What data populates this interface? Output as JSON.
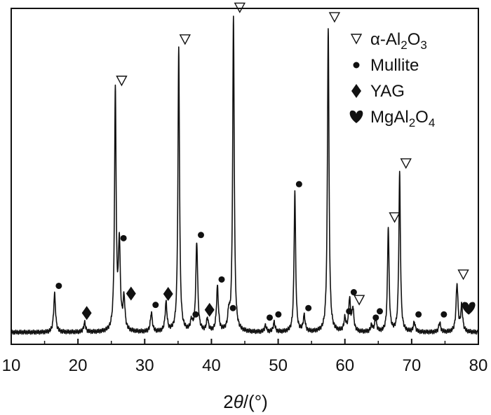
{
  "chart_data": {
    "type": "line",
    "x_axis": {
      "label_prefix": "2",
      "label_var": "θ",
      "label_suffix": "/(°)",
      "range": [
        10,
        80
      ],
      "ticks": [
        "10",
        "20",
        "30",
        "40",
        "50",
        "60",
        "70",
        "80"
      ]
    },
    "y_axis": {
      "label": "",
      "ticks_shown": false
    },
    "legend": {
      "position": "top-right",
      "entries": [
        {
          "symbol": "triangle",
          "text": "α-Al",
          "sub1": "2",
          "mid": "O",
          "sub2": "3"
        },
        {
          "symbol": "circle",
          "text": "Mullite"
        },
        {
          "symbol": "diamond",
          "text": "YAG"
        },
        {
          "symbol": "heart",
          "text": "MgAl",
          "sub1": "2",
          "mid": "O",
          "sub2": "4"
        }
      ]
    },
    "baseline_intensity": 0.02,
    "peaks": [
      {
        "x": 16.5,
        "h": 0.12,
        "marker": "circle"
      },
      {
        "x": 21.0,
        "h": 0.03,
        "marker": "diamond"
      },
      {
        "x": 25.6,
        "h": 0.76,
        "marker": "triangle"
      },
      {
        "x": 26.2,
        "h": 0.27,
        "marker": "circle"
      },
      {
        "x": 26.9,
        "h": 0.1,
        "marker": "diamond"
      },
      {
        "x": 31.0,
        "h": 0.06,
        "marker": "circle"
      },
      {
        "x": 33.2,
        "h": 0.09,
        "marker": "diamond"
      },
      {
        "x": 35.1,
        "h": 0.89,
        "marker": "triangle"
      },
      {
        "x": 37.0,
        "h": 0.03,
        "marker": "circle"
      },
      {
        "x": 37.8,
        "h": 0.28,
        "marker": "circle"
      },
      {
        "x": 39.4,
        "h": 0.04,
        "marker": "diamond"
      },
      {
        "x": 40.9,
        "h": 0.14,
        "marker": "circle"
      },
      {
        "x": 42.6,
        "h": 0.05,
        "marker": "circle"
      },
      {
        "x": 43.3,
        "h": 0.99,
        "marker": "triangle"
      },
      {
        "x": 48.1,
        "h": 0.02,
        "marker": "circle"
      },
      {
        "x": 49.4,
        "h": 0.03,
        "marker": "circle"
      },
      {
        "x": 52.5,
        "h": 0.44,
        "marker": "circle"
      },
      {
        "x": 53.9,
        "h": 0.05,
        "marker": "circle"
      },
      {
        "x": 57.5,
        "h": 0.96,
        "marker": "triangle"
      },
      {
        "x": 60.0,
        "h": 0.04,
        "marker": "circle"
      },
      {
        "x": 60.7,
        "h": 0.1,
        "marker": "circle"
      },
      {
        "x": 61.2,
        "h": 0.07,
        "marker": "triangle"
      },
      {
        "x": 64.0,
        "h": 0.02,
        "marker": "circle"
      },
      {
        "x": 64.6,
        "h": 0.04,
        "marker": "circle"
      },
      {
        "x": 66.5,
        "h": 0.33,
        "marker": "triangle"
      },
      {
        "x": 68.2,
        "h": 0.5,
        "marker": "triangle"
      },
      {
        "x": 70.4,
        "h": 0.03,
        "marker": "circle"
      },
      {
        "x": 74.2,
        "h": 0.03,
        "marker": "circle"
      },
      {
        "x": 76.8,
        "h": 0.15,
        "marker": "triangle"
      },
      {
        "x": 77.5,
        "h": 0.08,
        "marker": "heart"
      }
    ]
  }
}
